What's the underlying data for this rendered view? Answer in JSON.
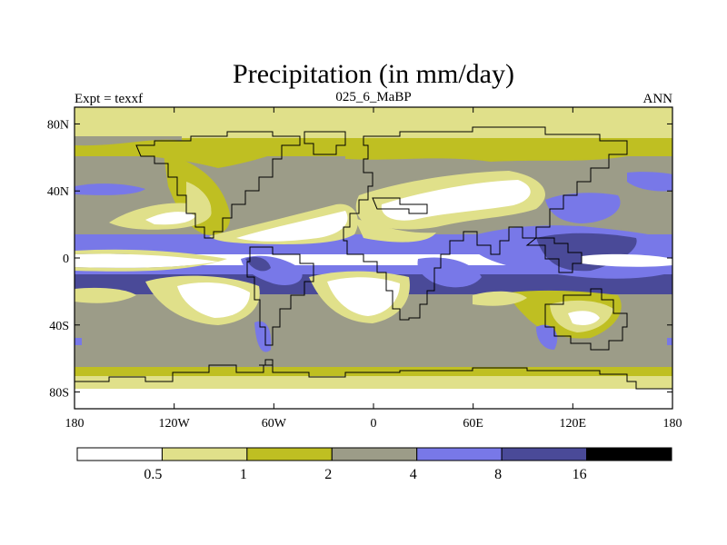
{
  "chart_data": {
    "type": "heatmap",
    "title": "Precipitation (in mm/day)",
    "left_label": "Expt = texxf",
    "center_label": "025_6_MaBP",
    "right_label": "ANN",
    "x_ticks": [
      "180",
      "120W",
      "60W",
      "0",
      "60E",
      "120E",
      "180"
    ],
    "x_tick_values": [
      -180,
      -120,
      -60,
      0,
      60,
      120,
      180
    ],
    "y_ticks": [
      "80N",
      "40N",
      "0",
      "40S",
      "80S"
    ],
    "y_tick_values": [
      80,
      40,
      0,
      -40,
      -80
    ],
    "xlim": [
      -180,
      180
    ],
    "ylim": [
      -90,
      90
    ],
    "levels": [
      "0.5",
      "1",
      "2",
      "4",
      "8",
      "16"
    ],
    "level_values": [
      0.5,
      1,
      2,
      4,
      8,
      16
    ],
    "level_colors": [
      "#ffffff",
      "#e0e08a",
      "#bfbf22",
      "#9c9c88",
      "#7878e8",
      "#4a4a98",
      "#000000"
    ],
    "colorbar_position": "bottom",
    "grid": false
  }
}
